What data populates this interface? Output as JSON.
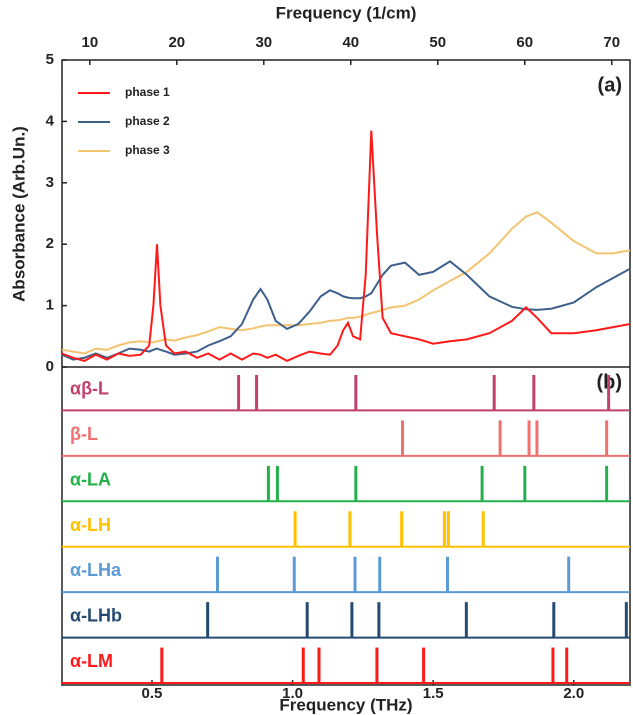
{
  "chart_data": {
    "type": "line",
    "panel_labels": [
      "(a)",
      "(b)"
    ],
    "title_top": "Frequency (1/cm)",
    "xlabel": "Frequency (THz)",
    "ylabel": "Absorbance (Arb.Un.)",
    "xlim": [
      0.18,
      2.2
    ],
    "xticks": [
      0.5,
      {
        "value": 1.0,
        "label": "1.0"
      },
      1.5,
      {
        "value": 2.0,
        "label": "2.0"
      }
    ],
    "x2lim": [
      6.8,
      72.1
    ],
    "x2ticks": [
      10,
      20,
      30,
      40,
      50,
      60,
      70
    ],
    "ylim": [
      0,
      5
    ],
    "yticks": [
      0,
      1,
      2,
      3,
      4,
      5
    ],
    "legend": "upper left",
    "x": [
      0.18,
      0.22,
      0.26,
      0.3,
      0.34,
      0.38,
      0.42,
      0.46,
      0.49,
      0.505,
      0.518,
      0.53,
      0.55,
      0.58,
      0.62,
      0.66,
      0.7,
      0.74,
      0.78,
      0.82,
      0.86,
      0.886,
      0.91,
      0.94,
      0.98,
      1.02,
      1.06,
      1.1,
      1.133,
      1.16,
      1.18,
      1.197,
      1.215,
      1.24,
      1.26,
      1.28,
      1.3,
      1.32,
      1.35,
      1.4,
      1.45,
      1.5,
      1.56,
      1.62,
      1.7,
      1.78,
      1.83,
      1.87,
      1.92,
      2.0,
      2.08,
      2.14,
      2.2
    ],
    "series": [
      {
        "name": "phase 1",
        "color": "#ff1a1a",
        "values": [
          0.22,
          0.15,
          0.1,
          0.2,
          0.12,
          0.22,
          0.18,
          0.2,
          0.35,
          1.0,
          2.0,
          1.0,
          0.35,
          0.22,
          0.25,
          0.15,
          0.22,
          0.12,
          0.22,
          0.12,
          0.22,
          0.2,
          0.15,
          0.2,
          0.1,
          0.18,
          0.25,
          0.22,
          0.2,
          0.35,
          0.6,
          0.72,
          0.5,
          0.45,
          1.5,
          3.85,
          2.2,
          0.8,
          0.55,
          0.5,
          0.45,
          0.38,
          0.42,
          0.45,
          0.55,
          0.75,
          0.97,
          0.8,
          0.55,
          0.55,
          0.6,
          0.65,
          0.7
        ]
      },
      {
        "name": "phase 2",
        "color": "#3d5f8c",
        "values": [
          0.2,
          0.12,
          0.15,
          0.22,
          0.15,
          0.22,
          0.3,
          0.28,
          0.25,
          0.28,
          0.3,
          0.28,
          0.25,
          0.2,
          0.22,
          0.25,
          0.35,
          0.42,
          0.5,
          0.7,
          1.1,
          1.27,
          1.1,
          0.75,
          0.62,
          0.7,
          0.9,
          1.15,
          1.25,
          1.2,
          1.15,
          1.13,
          1.12,
          1.12,
          1.15,
          1.2,
          1.35,
          1.5,
          1.65,
          1.7,
          1.5,
          1.55,
          1.72,
          1.5,
          1.15,
          0.98,
          0.94,
          0.93,
          0.95,
          1.05,
          1.3,
          1.45,
          1.6
        ]
      },
      {
        "name": "phase 3",
        "color": "#f2c470",
        "values": [
          0.28,
          0.25,
          0.22,
          0.3,
          0.28,
          0.35,
          0.4,
          0.42,
          0.4,
          0.4,
          0.42,
          0.43,
          0.45,
          0.43,
          0.48,
          0.52,
          0.58,
          0.65,
          0.62,
          0.6,
          0.63,
          0.66,
          0.68,
          0.68,
          0.68,
          0.68,
          0.7,
          0.72,
          0.75,
          0.76,
          0.78,
          0.8,
          0.8,
          0.82,
          0.85,
          0.88,
          0.9,
          0.93,
          0.97,
          1.0,
          1.1,
          1.25,
          1.4,
          1.55,
          1.85,
          2.25,
          2.45,
          2.52,
          2.35,
          2.05,
          1.85,
          1.85,
          1.9
        ]
      }
    ],
    "modes": [
      {
        "name": "αβ-L",
        "color": "#c0406e",
        "positions": [
          0.808,
          0.872,
          1.225,
          1.717,
          1.858,
          2.124
        ]
      },
      {
        "name": "β-L",
        "color": "#f07070",
        "positions": [
          1.391,
          1.738,
          1.841,
          1.869,
          2.117
        ]
      },
      {
        "name": "α-LA",
        "color": "#22b04a",
        "positions": [
          0.914,
          0.946,
          1.225,
          1.674,
          1.826,
          2.117
        ]
      },
      {
        "name": "α-LH",
        "color": "#ffc000",
        "positions": [
          1.009,
          1.204,
          1.388,
          1.54,
          1.554,
          1.678
        ]
      },
      {
        "name": "α-LHa",
        "color": "#5b9bd5",
        "positions": [
          0.733,
          1.006,
          1.222,
          1.31,
          1.551,
          1.982
        ]
      },
      {
        "name": "α-LHb",
        "color": "#244a70",
        "positions": [
          0.698,
          1.052,
          1.211,
          1.307,
          1.618,
          1.929,
          2.187
        ]
      },
      {
        "name": "α-LM",
        "color": "#ff1a1a",
        "positions": [
          0.535,
          1.038,
          1.094,
          1.3,
          1.466,
          1.926,
          1.975
        ]
      }
    ]
  }
}
